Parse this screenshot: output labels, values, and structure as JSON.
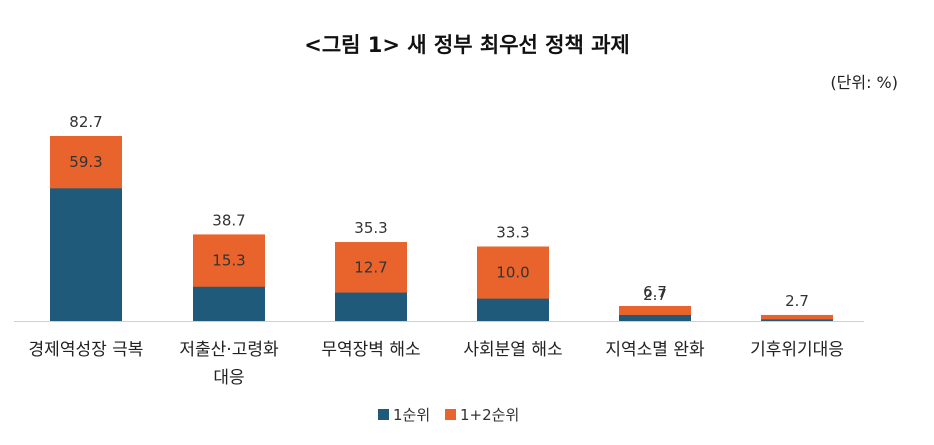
{
  "chart_data": {
    "type": "bar",
    "stacked": true,
    "title": "<그림 1> 새 정부 최우선 정책 과제",
    "unit_note": "(단위: %)",
    "categories": [
      [
        "경제역성장 극복"
      ],
      [
        "저출산·고령화",
        "대응"
      ],
      [
        "무역장벽 해소"
      ],
      [
        "사회분열 해소"
      ],
      [
        "지역소멸 완화"
      ],
      [
        "기후위기대응"
      ]
    ],
    "series": [
      {
        "name": "1순위",
        "values": [
          59.3,
          15.3,
          12.7,
          10.0,
          2.7,
          0.7
        ],
        "color": "#1f5a7a"
      },
      {
        "name": "1+2순위",
        "values": [
          82.7,
          38.7,
          35.3,
          33.3,
          6.7,
          2.7
        ],
        "color": "#e8642c"
      }
    ],
    "data_labels": {
      "totals": [
        "82.7",
        "38.7",
        "35.3",
        "33.3",
        "6.7",
        "2.7"
      ],
      "first": [
        "59.3",
        "15.3",
        "12.7",
        "10.0",
        "2.7",
        ""
      ]
    },
    "legend_position": "bottom",
    "grid": false
  }
}
